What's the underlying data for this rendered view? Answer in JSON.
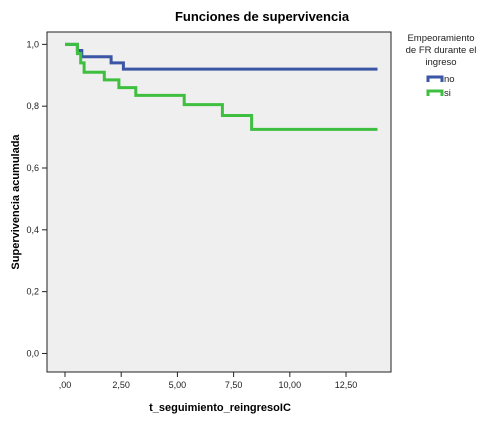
{
  "chart_data": {
    "type": "line",
    "title": "Funciones de supervivencia",
    "xlabel": "t_seguimiento_reingresoIC",
    "ylabel": "Supervivencia acumulada",
    "xlim": [
      -0.8,
      14.5
    ],
    "ylim": [
      -0.06,
      1.04
    ],
    "x_ticks": [
      0,
      2.5,
      5,
      7.5,
      10,
      12.5
    ],
    "x_tick_labels": [
      ",00",
      "2,50",
      "5,00",
      "7,50",
      "10,00",
      "12,50"
    ],
    "y_ticks": [
      0,
      0.2,
      0.4,
      0.6,
      0.8,
      1.0
    ],
    "y_tick_labels": [
      "0,0",
      "0,2",
      "0,4",
      "0,6",
      "0,8",
      "1,0"
    ],
    "grid": false,
    "step": true,
    "legend_title": [
      "Empeoramiento",
      "de FR durante el",
      "ingreso"
    ],
    "legend_position": "right",
    "series": [
      {
        "name": "no",
        "color": "#3a56a4",
        "x": [
          0,
          0.55,
          0.75,
          2.05,
          2.6,
          13.9
        ],
        "y": [
          1.0,
          0.98,
          0.96,
          0.94,
          0.92,
          0.92
        ]
      },
      {
        "name": "si",
        "color": "#3fbf3f",
        "x": [
          0,
          0.55,
          0.7,
          0.85,
          1.75,
          2.4,
          3.15,
          5.3,
          7.0,
          8.3,
          13.9
        ],
        "y": [
          1.0,
          0.97,
          0.94,
          0.91,
          0.885,
          0.86,
          0.835,
          0.805,
          0.77,
          0.725,
          0.725
        ]
      }
    ]
  }
}
